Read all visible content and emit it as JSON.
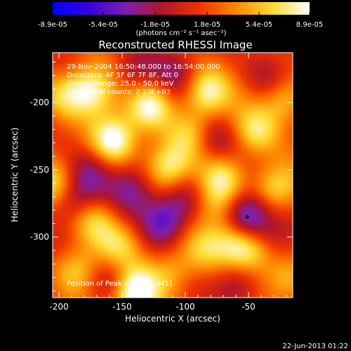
{
  "colorbar": {
    "tick_labels": [
      "-8.9e-05",
      "-5.4e-05",
      "-1.8e-05",
      "1.8e-05",
      "5.4e-05",
      "8.9e-05"
    ],
    "tick_values": [
      -8.9e-05,
      -5.4e-05,
      -1.8e-05,
      1.8e-05,
      5.4e-05,
      8.9e-05
    ],
    "range": [
      -8.9e-05,
      8.9e-05
    ],
    "units_label": "(photons cm⁻² s⁻¹ asec⁻²)",
    "colors": [
      "#0000ff",
      "#3a00e0",
      "#7f1fb0",
      "#b0162a",
      "#ee3300",
      "#ff8800",
      "#ffdd33",
      "#ffffff"
    ]
  },
  "chart_data": {
    "type": "heatmap",
    "title": "Reconstructed RHESSI Image",
    "xlabel": "Heliocentric X (arcsec)",
    "ylabel": "Heliocentric Y (arcsec)",
    "xlim": [
      -205,
      -15
    ],
    "ylim": [
      -345,
      -163
    ],
    "x_ticks": [
      -200,
      -150,
      -100,
      -50
    ],
    "y_ticks": [
      -200,
      -250,
      -300
    ],
    "x_tick_labels": [
      "-200",
      "-150",
      "-100",
      "-50"
    ],
    "y_tick_labels": [
      "-200",
      "-250",
      "-300"
    ],
    "info_lines": [
      "29-Nov-2004 16:50:48.000 to 16:54:00.000",
      "Detectors: 4F 5F 6F 7F 8F, Att 0",
      "Energy Range: 25.0 - 50.0 keV",
      "Clean    Total counts: 2.20E+03"
    ],
    "peak_label": "Position of Peak = [-140,-341]",
    "peak_position": [
      -140,
      -341
    ],
    "marker_position": [
      -51,
      -285
    ],
    "hot_sources": [
      {
        "x": -157,
        "y": -228,
        "value": 8e-05
      },
      {
        "x": -140,
        "y": -341,
        "value": 8.9e-05
      },
      {
        "x": -175,
        "y": -191,
        "value": 6.5e-05
      },
      {
        "x": -128,
        "y": -202,
        "value": 7e-05
      },
      {
        "x": -114,
        "y": -248,
        "value": 6e-05
      },
      {
        "x": -84,
        "y": -192,
        "value": 7e-05
      },
      {
        "x": -200,
        "y": -262,
        "value": 5.5e-05
      },
      {
        "x": -187,
        "y": -325,
        "value": 5e-05
      },
      {
        "x": -70,
        "y": -255,
        "value": 5.5e-05
      },
      {
        "x": -63,
        "y": -303,
        "value": 5e-05
      },
      {
        "x": -48,
        "y": -310,
        "value": 5e-05
      },
      {
        "x": -30,
        "y": -263,
        "value": 6e-05
      },
      {
        "x": -45,
        "y": -222,
        "value": 5e-05
      },
      {
        "x": -22,
        "y": -198,
        "value": 4.5e-05
      },
      {
        "x": -88,
        "y": -308,
        "value": 4e-05
      },
      {
        "x": -112,
        "y": -326,
        "value": 4.5e-05
      },
      {
        "x": -172,
        "y": -287,
        "value": 4.5e-05
      },
      {
        "x": -152,
        "y": -306,
        "value": 4e-05
      },
      {
        "x": -95,
        "y": -223,
        "value": 4.5e-05
      },
      {
        "x": -198,
        "y": -195,
        "value": 4.5e-05
      },
      {
        "x": -20,
        "y": -332,
        "value": 4e-05
      },
      {
        "x": -78,
        "y": -276,
        "value": 4e-05
      }
    ],
    "cold_sources": [
      {
        "x": -51,
        "y": -285,
        "value": -8e-05
      },
      {
        "x": -118,
        "y": -288,
        "value": -6.5e-05
      },
      {
        "x": -190,
        "y": -270,
        "value": -6e-05
      },
      {
        "x": -142,
        "y": -265,
        "value": -4.5e-05
      },
      {
        "x": -140,
        "y": -178,
        "value": -4e-05
      },
      {
        "x": -78,
        "y": -229,
        "value": -4e-05
      },
      {
        "x": -35,
        "y": -180,
        "value": -3.5e-05
      },
      {
        "x": -158,
        "y": -330,
        "value": -4e-05
      },
      {
        "x": -60,
        "y": -335,
        "value": -4.5e-05
      },
      {
        "x": -100,
        "y": -270,
        "value": -4e-05
      },
      {
        "x": -176,
        "y": -251,
        "value": -3.5e-05
      },
      {
        "x": -108,
        "y": -178,
        "value": -3e-05
      },
      {
        "x": -30,
        "y": -300,
        "value": -3.5e-05
      }
    ],
    "grid": false,
    "legend": "colorbar-top"
  },
  "footer": {
    "timestamp": "22-Jun-2013 01:22"
  }
}
